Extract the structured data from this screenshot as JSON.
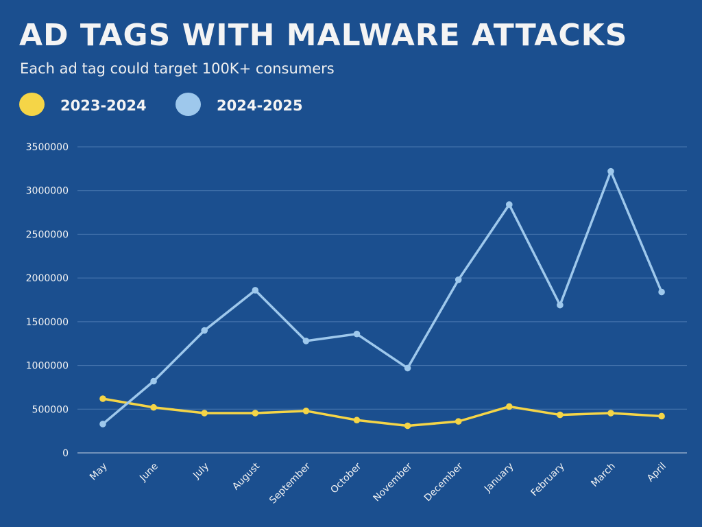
{
  "title": "AD TAGS WITH MALWARE ATTACKS",
  "subtitle": "Each ad tag could target 100K+ consumers",
  "colors": {
    "background": "#1b4f8f",
    "gridline": "#4a78b0",
    "text": "#f4f4f4"
  },
  "chart_data": {
    "type": "line",
    "title": "AD TAGS WITH MALWARE ATTACKS",
    "subtitle": "Each ad tag could target 100K+ consumers",
    "xlabel": "",
    "ylabel": "",
    "categories": [
      "May",
      "June",
      "July",
      "August",
      "September",
      "October",
      "November",
      "December",
      "January",
      "February",
      "March",
      "April"
    ],
    "yticks": [
      "0",
      "500000",
      "1000000",
      "1500000",
      "2000000",
      "2500000",
      "3000000",
      "3500000"
    ],
    "ylim": [
      0,
      3500000
    ],
    "grid": true,
    "legend_position": "top-left",
    "series": [
      {
        "name": "2023-2024",
        "color": "#f5d547",
        "values": [
          620000,
          520000,
          455000,
          455000,
          480000,
          375000,
          310000,
          360000,
          530000,
          435000,
          455000,
          420000
        ]
      },
      {
        "name": "2024-2025",
        "color": "#9ec8ec",
        "values": [
          330000,
          820000,
          1400000,
          1860000,
          1280000,
          1360000,
          970000,
          1980000,
          2840000,
          1690000,
          3220000,
          1840000
        ]
      }
    ]
  }
}
